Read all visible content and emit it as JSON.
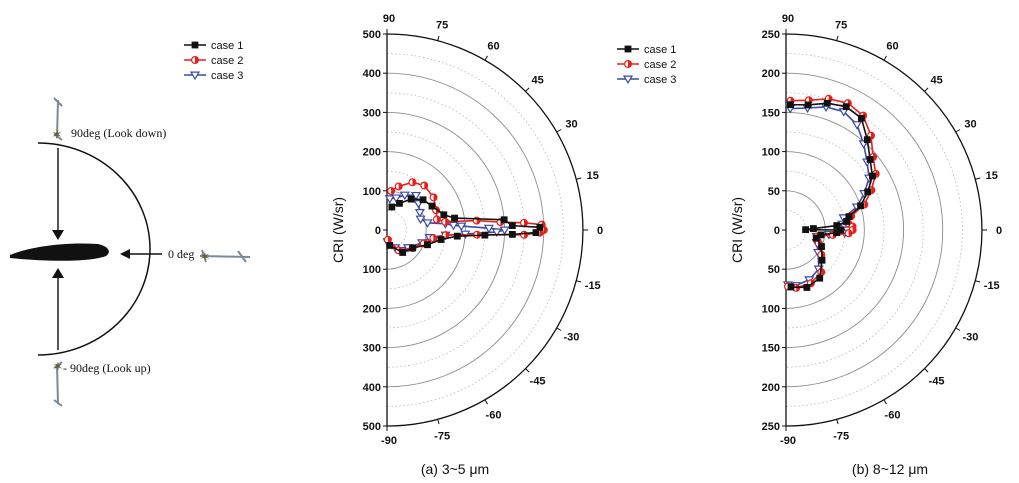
{
  "diagram": {
    "label_down": "90deg (Look down)",
    "label_zero": "0 deg",
    "label_up": "- 90deg (Look up)"
  },
  "legend": [
    "case 1",
    "case 2",
    "case 3"
  ],
  "colors": {
    "case 1": "#111111",
    "case 2": "#e8201a",
    "case 3": "#3a4aa8",
    "grid": "#999999"
  },
  "chart_data": [
    {
      "type": "polar-line",
      "caption": "(a) 3~5 μm",
      "ylabel": "CRI (W/sr)",
      "rmax": 500,
      "radial_ticks": [
        500,
        400,
        300,
        200,
        100,
        0,
        100,
        200,
        300,
        400,
        500
      ],
      "angle_ticks": [
        90,
        75,
        60,
        45,
        30,
        15,
        0,
        -15,
        -30,
        -45,
        -60,
        -75,
        -90
      ],
      "series": [
        {
          "name": "case 1",
          "marker": "square",
          "points": [
            [
              78,
              60
            ],
            [
              65,
              75
            ],
            [
              52,
              100
            ],
            [
              40,
              120
            ],
            [
              28,
              130
            ],
            [
              15,
              150
            ],
            [
              10,
              175
            ],
            [
              5,
              300
            ],
            [
              2,
              320
            ],
            [
              1,
              390
            ],
            [
              -1,
              380
            ],
            [
              -2,
              320
            ],
            [
              -3,
              250
            ],
            [
              -5,
              180
            ],
            [
              -10,
              140
            ],
            [
              -20,
              110
            ],
            [
              -35,
              80
            ],
            [
              -55,
              70
            ],
            [
              -80,
              40
            ]
          ]
        },
        {
          "name": "case 2",
          "marker": "half-circle",
          "points": [
            [
              84,
              100
            ],
            [
              75,
              115
            ],
            [
              62,
              138
            ],
            [
              50,
              148
            ],
            [
              35,
              145
            ],
            [
              22,
              135
            ],
            [
              12,
              130
            ],
            [
              8,
              150
            ],
            [
              6,
              230
            ],
            [
              4,
              290
            ],
            [
              3,
              350
            ],
            [
              2,
              395
            ],
            [
              0,
              400
            ],
            [
              -1,
              390
            ],
            [
              -2,
              350
            ],
            [
              -3,
              230
            ],
            [
              -5,
              150
            ],
            [
              -10,
              120
            ],
            [
              -20,
              100
            ],
            [
              -35,
              80
            ],
            [
              -60,
              60
            ],
            [
              -85,
              25
            ]
          ]
        },
        {
          "name": "case 3",
          "marker": "triangle-down",
          "points": [
            [
              85,
              80
            ],
            [
              74,
              85
            ],
            [
              63,
              100
            ],
            [
              50,
              115
            ],
            [
              40,
              105
            ],
            [
              28,
              95
            ],
            [
              18,
              90
            ],
            [
              10,
              105
            ],
            [
              6,
              150
            ],
            [
              4,
              170
            ],
            [
              3,
              190
            ],
            [
              1,
              260
            ],
            [
              0,
              300
            ],
            [
              -1,
              280
            ],
            [
              -3,
              200
            ],
            [
              -5,
              150
            ],
            [
              -10,
              110
            ],
            [
              -20,
              95
            ],
            [
              -40,
              70
            ],
            [
              -65,
              50
            ],
            [
              -88,
              30
            ]
          ]
        }
      ]
    },
    {
      "type": "polar-line",
      "caption": "(b) 8~12 μm",
      "ylabel": "CRI (W/sr)",
      "rmax": 250,
      "radial_ticks": [
        250,
        200,
        150,
        100,
        50,
        0,
        50,
        100,
        150,
        200,
        250
      ],
      "angle_ticks": [
        90,
        75,
        60,
        45,
        30,
        15,
        0,
        -15,
        -30,
        -45,
        -60,
        -75,
        -90
      ],
      "series": [
        {
          "name": "case 1",
          "marker": "square",
          "points": [
            [
              88,
              160
            ],
            [
              80,
              162
            ],
            [
              72,
              170
            ],
            [
              64,
              175
            ],
            [
              56,
              172
            ],
            [
              48,
              155
            ],
            [
              40,
              140
            ],
            [
              32,
              130
            ],
            [
              25,
              115
            ],
            [
              18,
              100
            ],
            [
              12,
              82
            ],
            [
              8,
              78
            ],
            [
              5,
              65
            ],
            [
              3,
              35
            ],
            [
              1,
              25
            ],
            [
              0,
              70
            ],
            [
              -3,
              65
            ],
            [
              -8,
              45
            ],
            [
              -15,
              40
            ],
            [
              -25,
              50
            ],
            [
              -40,
              60
            ],
            [
              -55,
              75
            ],
            [
              -70,
              78
            ],
            [
              -85,
              73
            ]
          ]
        },
        {
          "name": "case 2",
          "marker": "half-circle",
          "points": [
            [
              88,
              165
            ],
            [
              80,
              168
            ],
            [
              72,
              176
            ],
            [
              64,
              180
            ],
            [
              56,
              176
            ],
            [
              48,
              162
            ],
            [
              40,
              145
            ],
            [
              32,
              135
            ],
            [
              25,
              120
            ],
            [
              18,
              105
            ],
            [
              12,
              85
            ],
            [
              6,
              80
            ],
            [
              3,
              85
            ],
            [
              0,
              85
            ],
            [
              -3,
              80
            ],
            [
              -6,
              60
            ],
            [
              -12,
              40
            ],
            [
              -22,
              45
            ],
            [
              -35,
              55
            ],
            [
              -50,
              70
            ],
            [
              -65,
              75
            ],
            [
              -80,
              75
            ],
            [
              -88,
              72
            ]
          ]
        },
        {
          "name": "case 3",
          "marker": "triangle-down",
          "points": [
            [
              88,
              155
            ],
            [
              80,
              158
            ],
            [
              72,
              165
            ],
            [
              64,
              168
            ],
            [
              56,
              162
            ],
            [
              48,
              148
            ],
            [
              40,
              135
            ],
            [
              32,
              125
            ],
            [
              25,
              110
            ],
            [
              18,
              95
            ],
            [
              12,
              75
            ],
            [
              6,
              72
            ],
            [
              3,
              75
            ],
            [
              0,
              78
            ],
            [
              -3,
              75
            ],
            [
              -6,
              55
            ],
            [
              -12,
              40
            ],
            [
              -22,
              42
            ],
            [
              -35,
              50
            ],
            [
              -50,
              65
            ],
            [
              -65,
              70
            ],
            [
              -80,
              72
            ],
            [
              -88,
              70
            ]
          ]
        }
      ]
    }
  ]
}
